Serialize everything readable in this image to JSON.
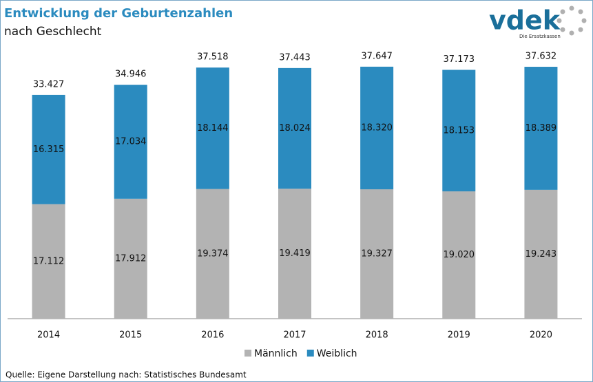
{
  "chart_data": {
    "type": "stacked-bar",
    "title": "Entwicklung der Geburtenzahlen",
    "subtitle": "nach Geschlecht",
    "categories": [
      "2014",
      "2015",
      "2016",
      "2017",
      "2018",
      "2019",
      "2020"
    ],
    "series": [
      {
        "name": "Männlich",
        "color": "#b3b3b3",
        "values": [
          17112,
          17912,
          19374,
          19419,
          19327,
          19020,
          19243
        ],
        "value_labels": [
          "17.112",
          "17.912",
          "19.374",
          "19.419",
          "19.327",
          "19.020",
          "19.243"
        ]
      },
      {
        "name": "Weiblich",
        "color": "#2b8bbf",
        "values": [
          16315,
          17034,
          18144,
          18024,
          18320,
          18153,
          18389
        ],
        "value_labels": [
          "16.315",
          "17.034",
          "18.144",
          "18.024",
          "18.320",
          "18.153",
          "18.389"
        ]
      }
    ],
    "totals": [
      {
        "value": 33427,
        "label": "33.427"
      },
      {
        "value": 34946,
        "label": "34.946"
      },
      {
        "value": 37518,
        "label": "37.518"
      },
      {
        "value": 37443,
        "label": "37.443"
      },
      {
        "value": 37647,
        "label": "37.647"
      },
      {
        "value": 37173,
        "label": "37.173"
      },
      {
        "value": 37632,
        "label": "37.632"
      }
    ],
    "ylim": [
      0,
      40000
    ],
    "legend": "bottom",
    "source": "Quelle: Eigene Darstellung nach: Statistisches Bundesamt"
  },
  "logo": {
    "text": "vdek",
    "tagline": "Die Ersatzkassen"
  }
}
